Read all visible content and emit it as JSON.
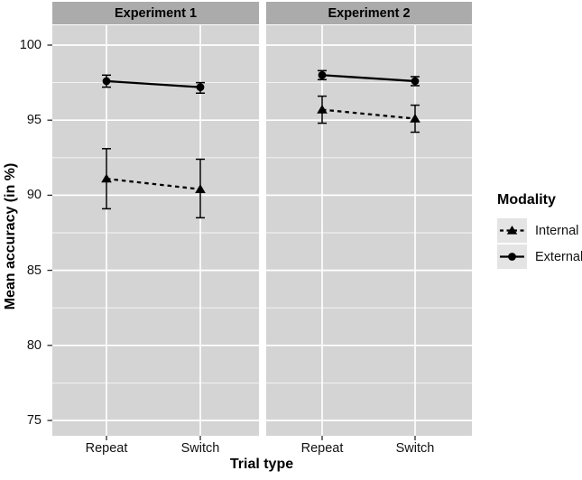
{
  "colors": {
    "plot_bg": "#ffffff",
    "panel_bg": "#d4d4d4",
    "strip_bg": "#ababab",
    "grid_major": "#ffffff",
    "grid_minor": "#f2f2f2",
    "data": "#000000",
    "axis_tick": "#2b2b2b",
    "legend_key_bg": "#e4e4e4"
  },
  "legend": {
    "title": "Modality",
    "items": [
      {
        "label": "Internal",
        "line": "dashed",
        "marker": "triangle"
      },
      {
        "label": "External",
        "line": "solid",
        "marker": "circle"
      }
    ]
  },
  "chart_data": {
    "type": "line",
    "title": "",
    "xlabel": "Trial type",
    "ylabel": "Mean accuracy (in %)",
    "categories": [
      "Repeat",
      "Switch"
    ],
    "yticks": [
      100,
      95,
      90,
      85,
      80,
      75
    ],
    "ylim": [
      73.7,
      101.3
    ],
    "grid": "major and minor horizontal + major vertical, white on gray",
    "legend_position": "right",
    "error_bars": "shown, cap width ~10px",
    "facets": [
      {
        "label": "Experiment 1",
        "series": [
          {
            "name": "Internal",
            "line": "dashed",
            "marker": "triangle",
            "values": [
              91.1,
              90.4
            ],
            "ci_low": [
              89.1,
              88.5
            ],
            "ci_high": [
              93.1,
              92.4
            ]
          },
          {
            "name": "External",
            "line": "solid",
            "marker": "circle",
            "values": [
              97.6,
              97.2
            ],
            "ci_low": [
              97.2,
              96.8
            ],
            "ci_high": [
              98.0,
              97.5
            ]
          }
        ]
      },
      {
        "label": "Experiment 2",
        "series": [
          {
            "name": "Internal",
            "line": "dashed",
            "marker": "triangle",
            "values": [
              95.7,
              95.1
            ],
            "ci_low": [
              94.8,
              94.2
            ],
            "ci_high": [
              96.6,
              96.0
            ]
          },
          {
            "name": "External",
            "line": "solid",
            "marker": "circle",
            "values": [
              98.0,
              97.6
            ],
            "ci_low": [
              97.7,
              97.3
            ],
            "ci_high": [
              98.3,
              97.9
            ]
          }
        ]
      }
    ]
  }
}
